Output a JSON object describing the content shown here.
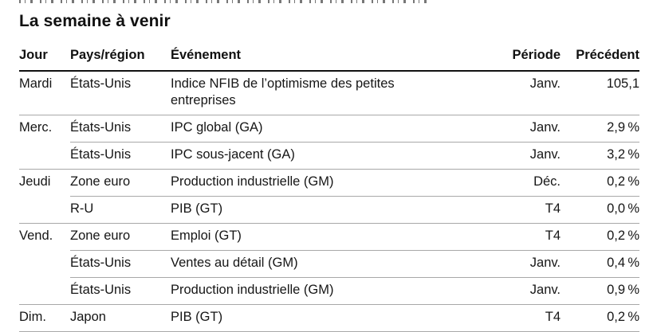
{
  "page": {
    "title": "La semaine à venir"
  },
  "colors": {
    "background": "#ffffff",
    "text": "#121212",
    "header_rule": "#111111",
    "row_separator": "#a8a8a8"
  },
  "table": {
    "columns": [
      {
        "key": "day",
        "label": "Jour"
      },
      {
        "key": "region",
        "label": "Pays/région"
      },
      {
        "key": "event",
        "label": "Événement"
      },
      {
        "key": "period",
        "label": "Période"
      },
      {
        "key": "previous",
        "label": "Précédent"
      }
    ],
    "rows": [
      {
        "day": "Mardi",
        "region": "États-Unis",
        "event": "Indice NFIB de l’optimisme des petites entreprises",
        "period": "Janv.",
        "previous": "105,1",
        "sep": "none"
      },
      {
        "day": "Merc.",
        "region": "États-Unis",
        "event": "IPC global (GA)",
        "period": "Janv.",
        "previous": "2,9 %",
        "sep": "full"
      },
      {
        "day": "",
        "region": "États-Unis",
        "event": "IPC sous-jacent (GA)",
        "period": "Janv.",
        "previous": "3,2 %",
        "sep": "indent"
      },
      {
        "day": "Jeudi",
        "region": "Zone euro",
        "event": "Production industrielle (GM)",
        "period": "Déc.",
        "previous": "0,2 %",
        "sep": "full"
      },
      {
        "day": "",
        "region": "R-U",
        "event": "PIB (GT)",
        "period": "T4",
        "previous": "0,0 %",
        "sep": "indent"
      },
      {
        "day": "Vend.",
        "region": "Zone euro",
        "event": "Emploi (GT)",
        "period": "T4",
        "previous": "0,2 %",
        "sep": "full"
      },
      {
        "day": "",
        "region": "États-Unis",
        "event": "Ventes au détail (GM)",
        "period": "Janv.",
        "previous": "0,4 %",
        "sep": "indent"
      },
      {
        "day": "",
        "region": "États-Unis",
        "event": "Production industrielle (GM)",
        "period": "Janv.",
        "previous": "0,9 %",
        "sep": "indent"
      },
      {
        "day": "Dim.",
        "region": "Japon",
        "event": "PIB (GT)",
        "period": "T4",
        "previous": "0,2 %",
        "sep": "full"
      }
    ]
  }
}
